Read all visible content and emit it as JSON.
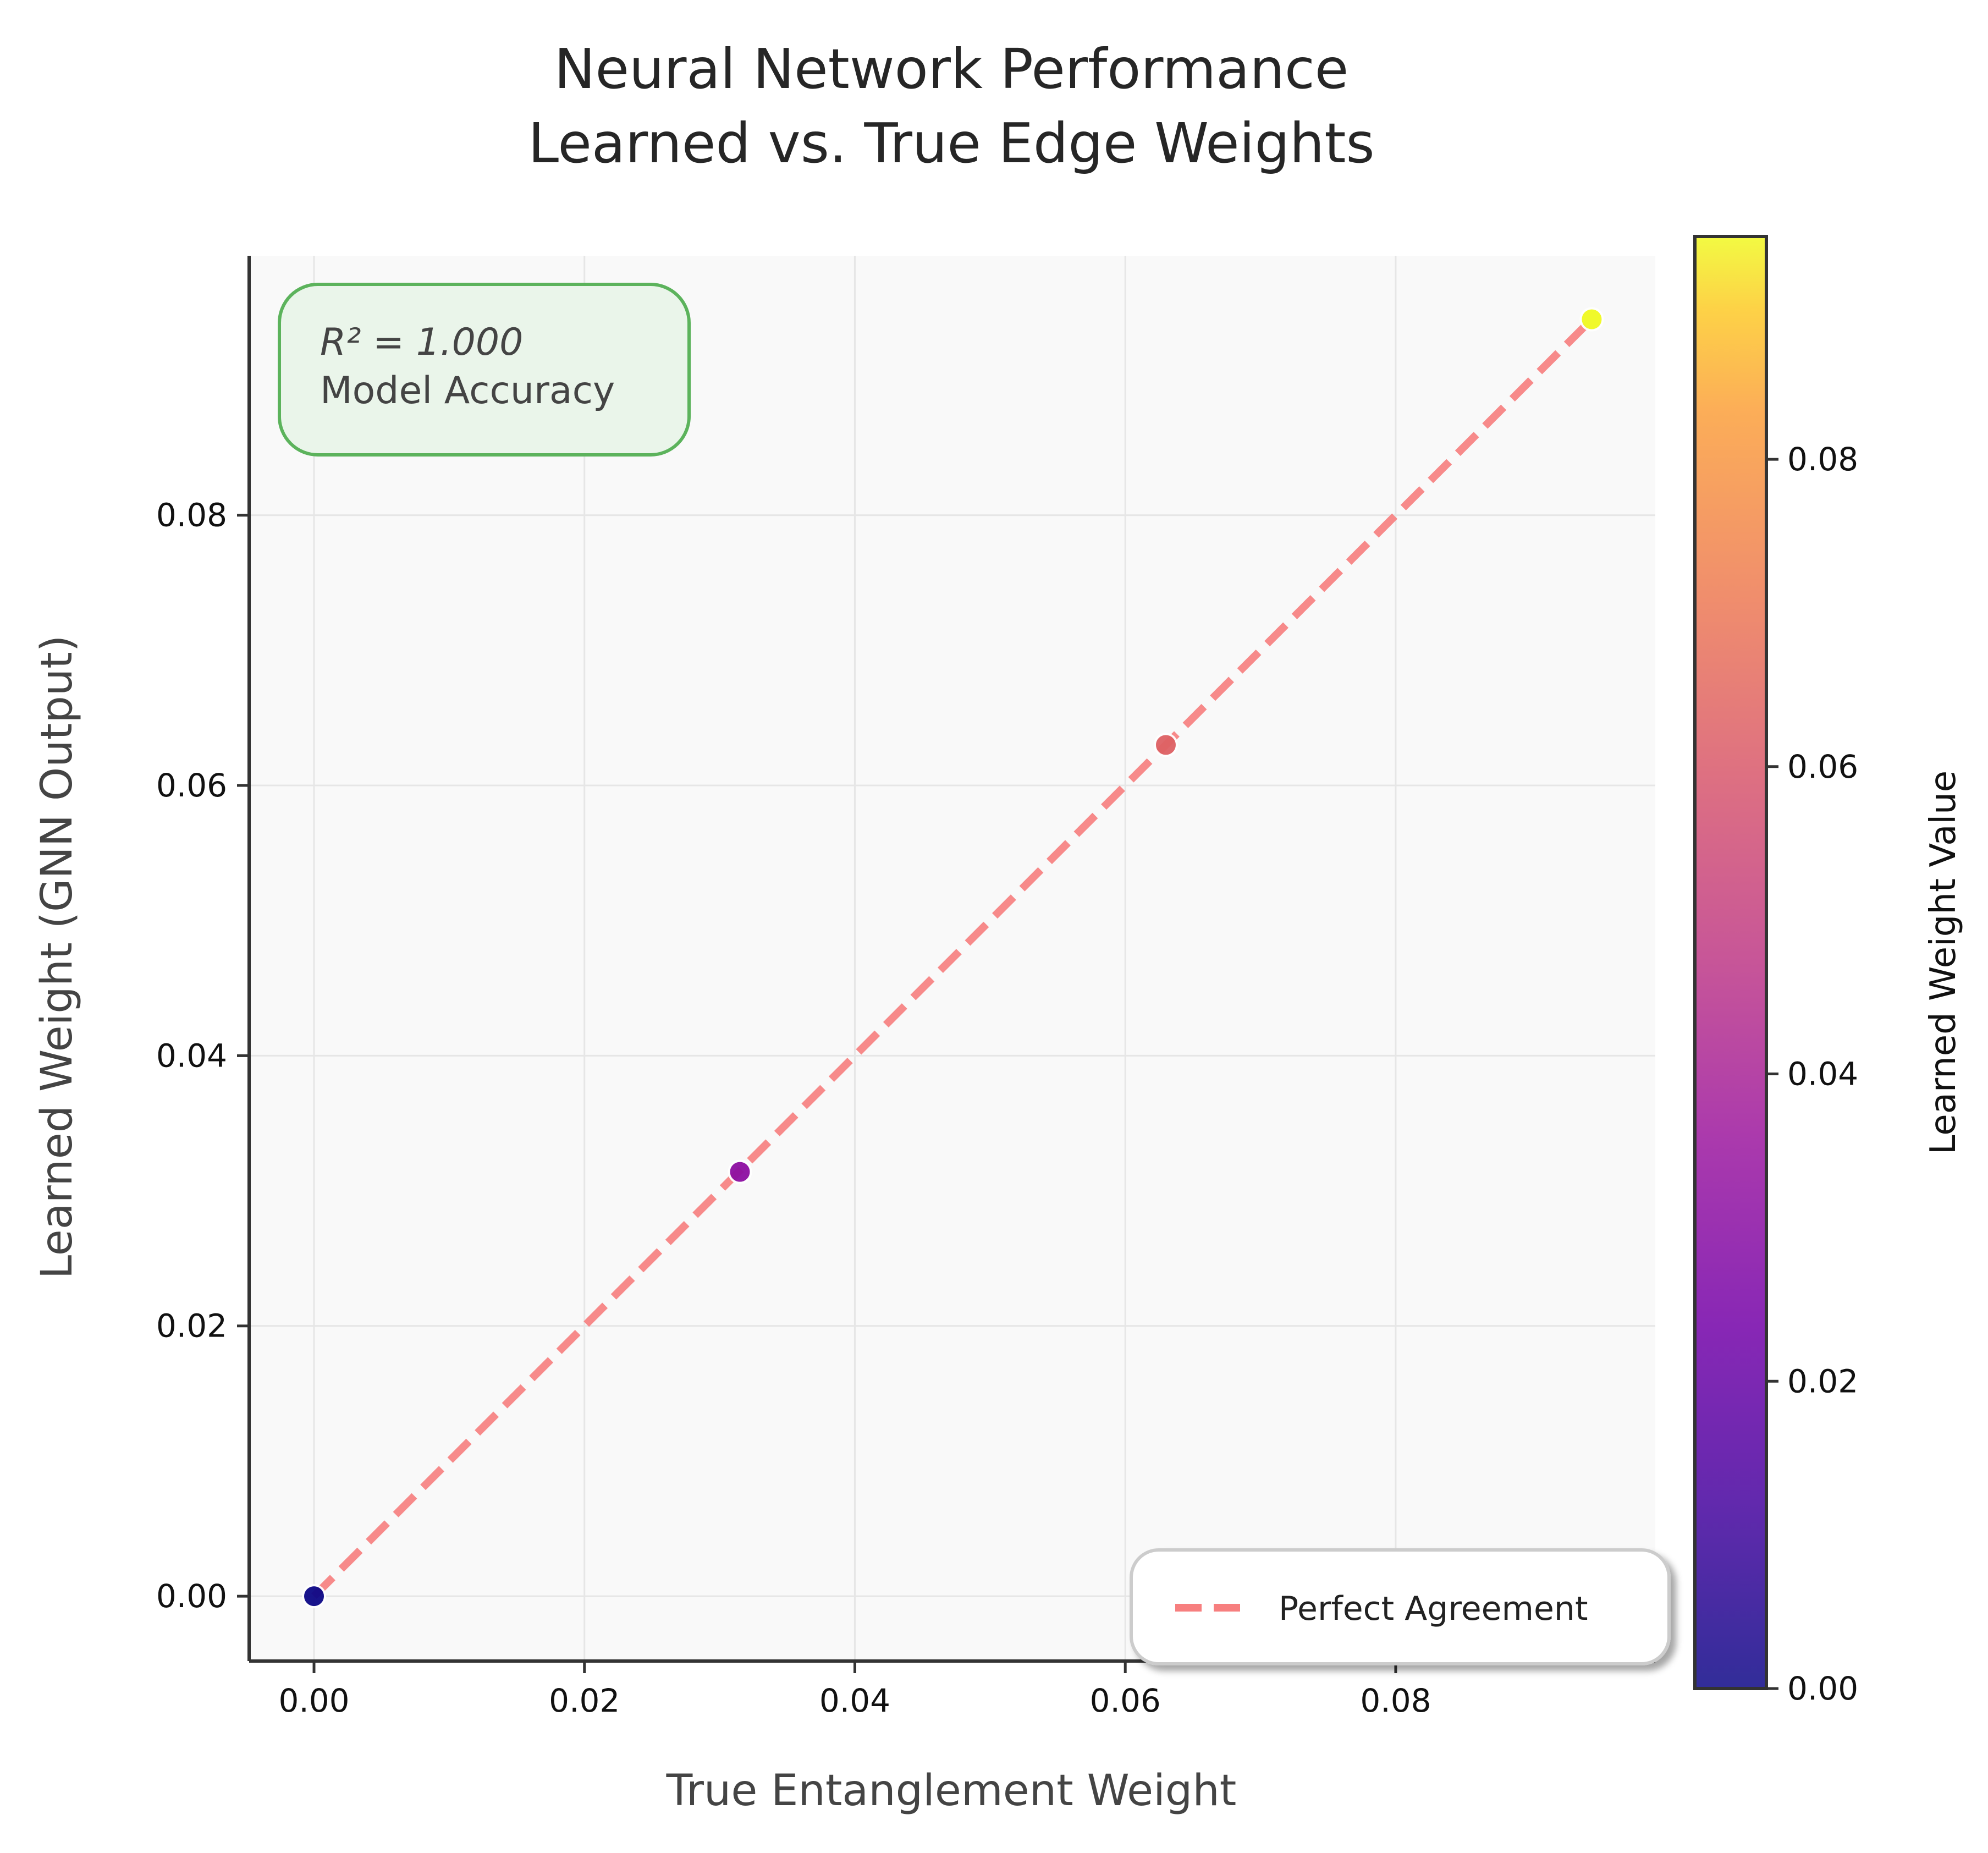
{
  "chart_data": {
    "type": "scatter",
    "title_lines": [
      "Neural Network Performance",
      "Learned vs. True Edge Weights"
    ],
    "xlabel": "True Entanglement Weight",
    "ylabel": "Learned Weight (GNN Output)",
    "xlim": [
      -0.0048,
      0.0992
    ],
    "ylim": [
      -0.0048,
      0.0992
    ],
    "x_ticks": [
      "0.00",
      "0.02",
      "0.04",
      "0.06",
      "0.08"
    ],
    "y_ticks": [
      "0.00",
      "0.02",
      "0.04",
      "0.06",
      "0.08"
    ],
    "grid": true,
    "points": [
      {
        "x": 0.0,
        "y": 0.0
      },
      {
        "x": 0.0315,
        "y": 0.0314
      },
      {
        "x": 0.063,
        "y": 0.063
      },
      {
        "x": 0.0945,
        "y": 0.0945
      }
    ],
    "reference_line": {
      "label": "Perfect Agreement",
      "x": [
        0.0,
        0.0945
      ],
      "y": [
        0.0,
        0.0945
      ],
      "color": "#f77f7f",
      "style": "dashed"
    },
    "legend": {
      "position": "bottom-right",
      "entries": [
        "Perfect Agreement"
      ]
    },
    "annotation": {
      "text_math": "R² = 1.000",
      "text": "Model Accuracy",
      "position": "top-left"
    },
    "colorbar": {
      "label": "Learned Weight Value",
      "colormap": "plasma",
      "range": [
        0.0,
        0.0945
      ],
      "ticks": [
        "0.00",
        "0.02",
        "0.04",
        "0.06",
        "0.08"
      ]
    }
  }
}
